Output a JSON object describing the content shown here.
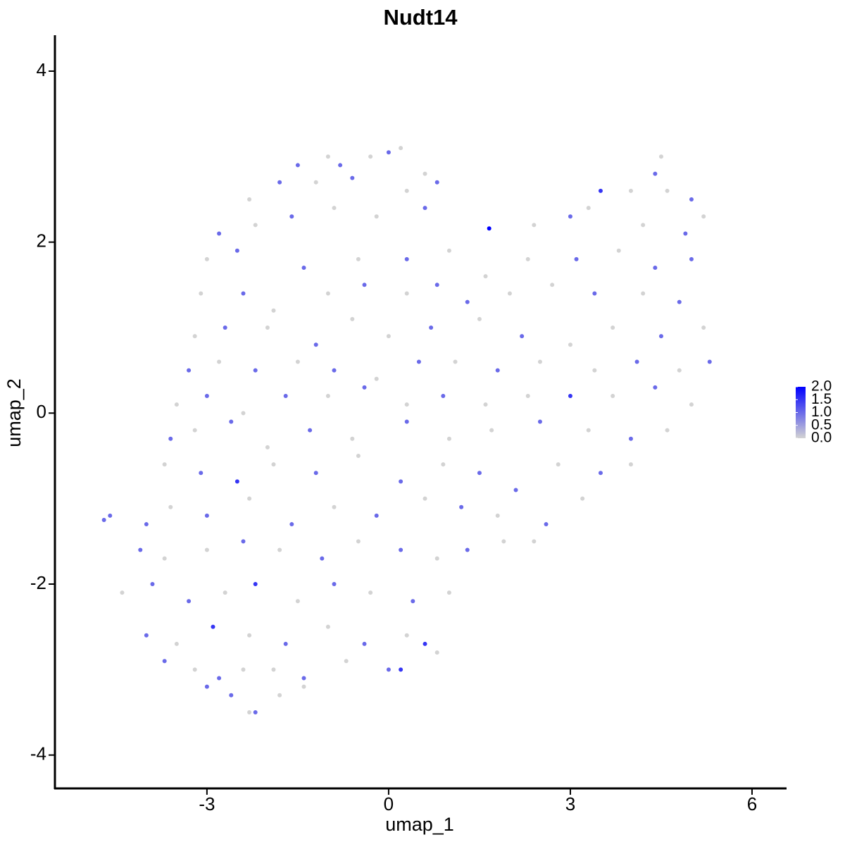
{
  "chart_data": {
    "type": "scatter",
    "title": "Nudt14",
    "x_label": "umap_1",
    "y_label": "umap_2",
    "xlim": [
      -5.51,
      6.57
    ],
    "ylim": [
      -4.39,
      4.42
    ],
    "xticks": [
      -3,
      0,
      3,
      6
    ],
    "yticks": [
      -4,
      -2,
      0,
      2,
      4
    ],
    "colorscale": [
      "#d3d3d3",
      "#0000ff"
    ],
    "clim": [
      0,
      2
    ],
    "colorbar_ticks": [
      {
        "value": 0,
        "label": "0.0"
      },
      {
        "value": 0.5,
        "label": "0.5"
      },
      {
        "value": 1,
        "label": "1.0"
      },
      {
        "value": 1.5,
        "label": "1.5"
      },
      {
        "value": 2,
        "label": "2.0"
      }
    ],
    "x": [
      -1.5,
      -1.0,
      -0.3,
      0,
      0.2,
      -0.8,
      0.6,
      4.5,
      4.4,
      -2.3,
      -1.8,
      -1.2,
      -0.6,
      0.3,
      0.8,
      3.5,
      4.0,
      4.6,
      5.0,
      3.3,
      -2.8,
      -2.2,
      -1.6,
      -0.9,
      -0.2,
      0.6,
      1.66,
      2.4,
      3.0,
      4.2,
      4.9,
      5.2,
      -3.0,
      -2.5,
      -1.4,
      -0.5,
      0.3,
      1.0,
      1.6,
      2.3,
      3.1,
      3.8,
      4.4,
      5.0,
      -3.1,
      -2.4,
      -1.9,
      -1.0,
      -0.4,
      0.3,
      0.8,
      1.3,
      2.0,
      2.7,
      3.4,
      4.2,
      4.8,
      -3.2,
      -2.7,
      -2.0,
      -1.2,
      -0.6,
      0.0,
      0.7,
      1.5,
      2.2,
      3.0,
      3.7,
      4.5,
      5.2,
      -3.3,
      -2.8,
      -2.2,
      -1.5,
      -0.9,
      -0.2,
      0.5,
      1.1,
      1.8,
      2.5,
      3.4,
      4.1,
      4.8,
      5.3,
      -3.5,
      -3.0,
      -2.4,
      -1.7,
      -1.0,
      -0.4,
      0.3,
      0.9,
      1.6,
      2.3,
      3.0,
      3.7,
      4.4,
      5.0,
      -3.6,
      -3.2,
      -2.6,
      -2.0,
      -1.3,
      -0.6,
      0.3,
      1.0,
      1.7,
      2.5,
      3.3,
      4.0,
      4.6,
      -3.7,
      -3.1,
      -2.5,
      -1.9,
      -1.2,
      -0.5,
      0.2,
      0.9,
      1.5,
      2.1,
      2.8,
      3.5,
      4.0,
      -4.7,
      -4.6,
      -4.0,
      -3.6,
      -3.0,
      -2.3,
      -1.6,
      -0.9,
      -0.2,
      0.6,
      1.2,
      1.8,
      2.6,
      3.2,
      -4.1,
      -3.7,
      -3.0,
      -2.4,
      -1.8,
      -1.1,
      -0.5,
      0.2,
      0.8,
      1.3,
      1.9,
      2.4,
      -4.4,
      -3.9,
      -3.3,
      -2.7,
      -2.2,
      -1.5,
      -0.9,
      -0.3,
      0.4,
      1.0,
      -4.0,
      -3.5,
      -2.9,
      -2.3,
      -1.7,
      -1.0,
      -0.4,
      0.3,
      0.6,
      0.8,
      -3.7,
      -3.2,
      -2.8,
      -2.4,
      -1.9,
      -1.4,
      -0.7,
      0.0,
      0.2,
      -3.0,
      -2.6,
      -2.3,
      -2.2,
      -1.8,
      -1.4
    ],
    "y": [
      2.9,
      3.0,
      3.0,
      3.05,
      3.1,
      2.9,
      2.8,
      3.0,
      2.8,
      2.5,
      2.7,
      2.7,
      2.75,
      2.6,
      2.7,
      2.6,
      2.6,
      2.6,
      2.5,
      2.4,
      2.1,
      2.2,
      2.3,
      2.4,
      2.3,
      2.4,
      2.16,
      2.2,
      2.3,
      2.2,
      2.1,
      2.3,
      1.8,
      1.9,
      1.7,
      1.8,
      1.8,
      1.9,
      1.6,
      1.8,
      1.8,
      1.9,
      1.7,
      1.8,
      1.4,
      1.4,
      1.2,
      1.4,
      1.5,
      1.4,
      1.5,
      1.3,
      1.4,
      1.5,
      1.4,
      1.4,
      1.3,
      0.9,
      1.0,
      1.0,
      0.8,
      1.1,
      0.9,
      1.0,
      1.1,
      0.9,
      0.8,
      1.0,
      0.9,
      1.0,
      0.5,
      0.6,
      0.5,
      0.6,
      0.5,
      0.4,
      0.6,
      0.6,
      0.5,
      0.6,
      0.5,
      0.6,
      0.5,
      0.6,
      0.1,
      0.2,
      0.0,
      0.2,
      0.2,
      0.3,
      0.1,
      0.2,
      0.1,
      0.2,
      0.2,
      0.2,
      0.3,
      0.1,
      -0.3,
      -0.2,
      -0.1,
      -0.4,
      -0.2,
      -0.3,
      -0.1,
      -0.3,
      -0.2,
      -0.1,
      -0.2,
      -0.3,
      -0.2,
      -0.6,
      -0.7,
      -0.8,
      -0.6,
      -0.7,
      -0.5,
      -0.8,
      -0.6,
      -0.7,
      -0.9,
      -0.6,
      -0.7,
      -0.6,
      -1.25,
      -1.2,
      -1.3,
      -1.1,
      -1.2,
      -1.0,
      -1.3,
      -1.1,
      -1.2,
      -1.0,
      -1.1,
      -1.2,
      -1.3,
      -1.0,
      -1.6,
      -1.7,
      -1.6,
      -1.5,
      -1.6,
      -1.7,
      -1.5,
      -1.6,
      -1.7,
      -1.6,
      -1.5,
      -1.5,
      -2.1,
      -2.0,
      -2.2,
      -2.1,
      -2.0,
      -2.2,
      -2.0,
      -2.1,
      -2.2,
      -2.1,
      -2.6,
      -2.7,
      -2.5,
      -2.6,
      -2.7,
      -2.5,
      -2.7,
      -2.6,
      -2.7,
      -2.8,
      -2.9,
      -3.0,
      -3.1,
      -3.0,
      -3.0,
      -3.1,
      -2.9,
      -3.0,
      -3.0,
      -3.2,
      -3.3,
      -3.5,
      -3.5,
      -3.3,
      -3.2
    ],
    "values": [
      1,
      0,
      0,
      1,
      0,
      1,
      0,
      0,
      1,
      0,
      1,
      0,
      1,
      0,
      1,
      1.5,
      0,
      0,
      1,
      0,
      1,
      0,
      1,
      0,
      0,
      1,
      2,
      0,
      1,
      0,
      1,
      0,
      0,
      1,
      1,
      0,
      1,
      0,
      0,
      0,
      1,
      0,
      1,
      1,
      0,
      1,
      0,
      0,
      1,
      0,
      1,
      1,
      0,
      0,
      1,
      0,
      1,
      0,
      1,
      0,
      1,
      0,
      0,
      1,
      0,
      1,
      0,
      0,
      1,
      0,
      1,
      0,
      1,
      0,
      1,
      0,
      1,
      0,
      1,
      0,
      0,
      1,
      0,
      1,
      0,
      1,
      0,
      1,
      0,
      1,
      0,
      1,
      0,
      0,
      1.5,
      0,
      1,
      0,
      1,
      0,
      1,
      0,
      1,
      0,
      1,
      0,
      0,
      1,
      0,
      1,
      0,
      0,
      1,
      1.5,
      0,
      1,
      0,
      1,
      0,
      1,
      1,
      0,
      1,
      0,
      1,
      1,
      1,
      0,
      1,
      0,
      1,
      0,
      1,
      0,
      1,
      0,
      1,
      0,
      1,
      0,
      0,
      1,
      0,
      1,
      0,
      1,
      0,
      1,
      0,
      0,
      0,
      1,
      1,
      0,
      1.5,
      0,
      1,
      0,
      1,
      0,
      1,
      0,
      1.5,
      0,
      1,
      0,
      1,
      0,
      1.5,
      0,
      1,
      0,
      1,
      0,
      0,
      1,
      0,
      1,
      1.5,
      1,
      1,
      0,
      1,
      0,
      0
    ]
  }
}
